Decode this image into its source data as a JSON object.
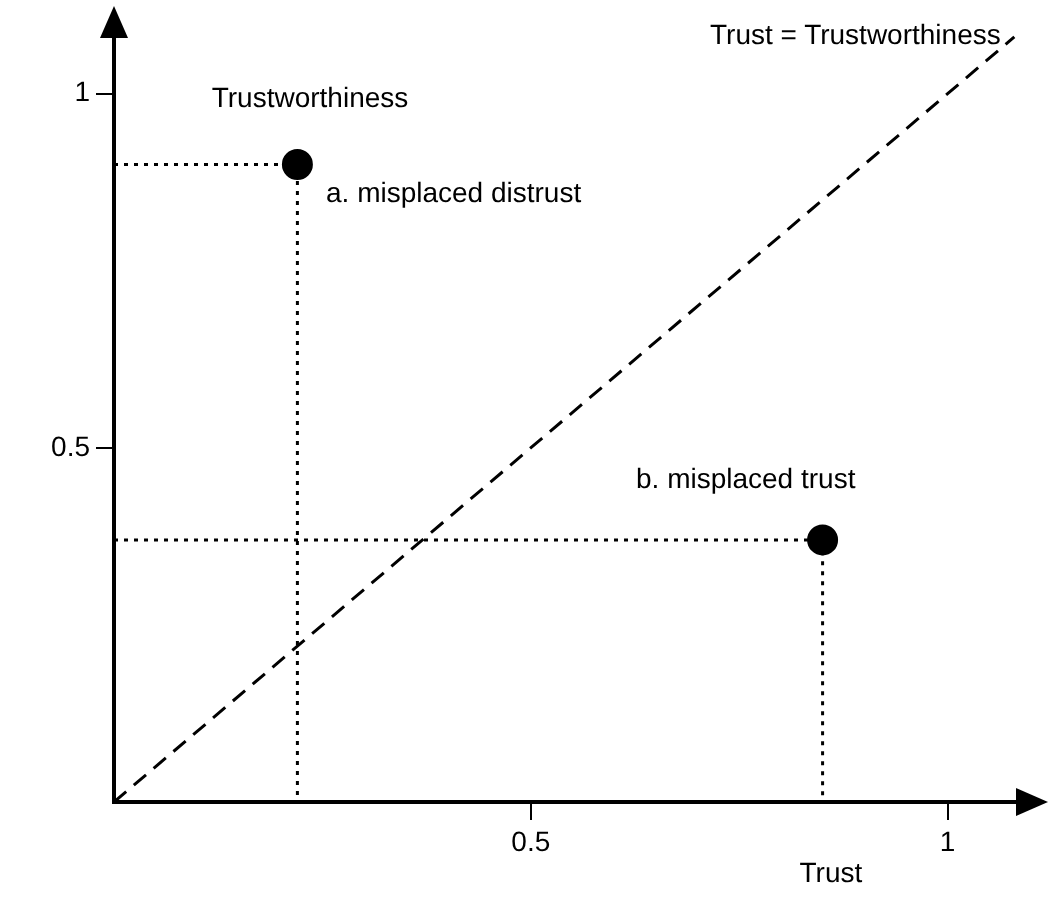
{
  "chart_data": {
    "type": "scatter",
    "xlabel": "Trust",
    "ylabel": "Trustworthiness",
    "xlim": [
      0,
      1.1
    ],
    "ylim": [
      0,
      1.1
    ],
    "xticks": [
      0.5,
      1
    ],
    "yticks": [
      0.5,
      1
    ],
    "grid": false,
    "legend": false,
    "marker": "circle",
    "series": [
      {
        "type": "line",
        "color": "#000000",
        "line_style": "dashed",
        "marker": "none",
        "x": [
          0,
          1.08
        ],
        "values": [
          0,
          1.08
        ]
      },
      {
        "type": "line",
        "color": "#000000",
        "line_style": "dotted",
        "marker": "none",
        "x": [
          0,
          0.22,
          0.22
        ],
        "values": [
          0.9,
          0.9,
          0
        ]
      },
      {
        "type": "line",
        "color": "#000000",
        "line_style": "dotted",
        "marker": "none",
        "x": [
          0,
          0.85,
          0.85
        ],
        "values": [
          0.37,
          0.37,
          0
        ]
      },
      {
        "color": "#000000",
        "x": [
          0.22,
          0.85
        ],
        "values": [
          0.9,
          0.37
        ]
      }
    ],
    "annotations": [
      "Trust = Trustworthiness",
      "a. misplaced distrust",
      "b. misplaced trust"
    ]
  }
}
